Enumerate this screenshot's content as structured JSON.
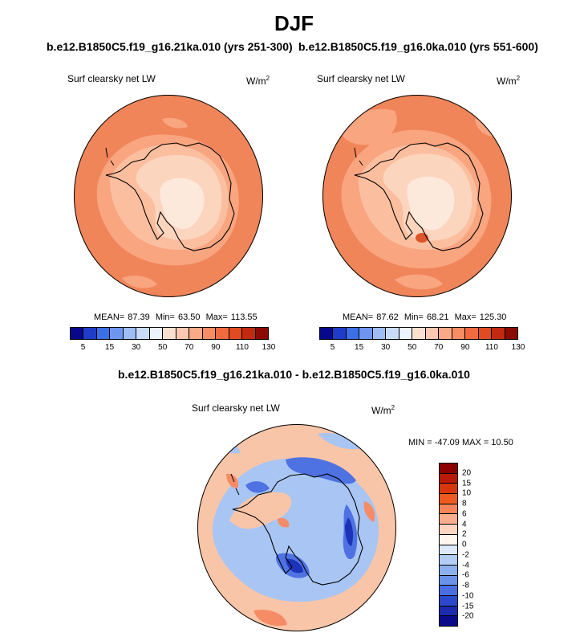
{
  "figure": {
    "title": "DJF",
    "left_case": "b.e12.B1850C5.f19_g16.21ka.010 (yrs 251-300)",
    "right_case": "b.e12.B1850C5.f19_g16.0ka.010 (yrs 551-600)",
    "diff_title": "b.e12.B1850C5.f19_g16.21ka.010 - b.e12.B1850C5.f19_g16.0ka.010"
  },
  "panels": {
    "left": {
      "variable": "Surf clearsky net LW",
      "units_base": "W/m",
      "units_exp": "2",
      "mean_label": "MEAN=",
      "mean": "87.39",
      "min_label": "Min=",
      "min": "63.50",
      "max_label": "Max=",
      "max": "113.55"
    },
    "right": {
      "variable": "Surf clearsky net LW",
      "units_base": "W/m",
      "units_exp": "2",
      "mean_label": "MEAN=",
      "mean": "87.62",
      "min_label": "Min=",
      "min": "68.21",
      "max_label": "Max=",
      "max": "125.30"
    },
    "diff": {
      "variable": "Surf clearsky net LW",
      "units_base": "W/m",
      "units_exp": "2",
      "minmax_text": "MIN = -47.09 MAX =  10.50"
    }
  },
  "colorbars": {
    "main": {
      "colors": [
        "#08088c",
        "#1e3cc8",
        "#3c6ee6",
        "#6e96f0",
        "#9ebef5",
        "#c8dcfa",
        "#ebf3ff",
        "#fbe0d0",
        "#fcc8b0",
        "#fbaa88",
        "#f88c62",
        "#f26a40",
        "#e24a22",
        "#c22a10",
        "#8c0a04"
      ],
      "tick_labels": [
        "5",
        "15",
        "30",
        "50",
        "70",
        "90",
        "110",
        "130"
      ]
    },
    "diff": {
      "colors": [
        "#8c0000",
        "#b81a06",
        "#d8360e",
        "#ee5a20",
        "#f7845a",
        "#fbae8e",
        "#fdd4bf",
        "#fff6ee",
        "#dde9fb",
        "#b4cdf6",
        "#8cb0ef",
        "#6a92e8",
        "#4a6ee0",
        "#2c48cc",
        "#1c2ab0",
        "#0a0a8a"
      ],
      "tick_labels": [
        "20",
        "15",
        "10",
        "8",
        "6",
        "4",
        "2",
        "0",
        "-2",
        "-4",
        "-6",
        "-8",
        "-10",
        "-15",
        "-20"
      ]
    }
  },
  "map_legend": {
    "colors": {
      "ocean": "#f0855a",
      "sea_ice_zone": "#f9a580",
      "coast_shelf": "#fbbfa0",
      "interior": "#fcd5bf",
      "plateau": "#fde8dc",
      "diff_base": "#f9c5a8",
      "diff_cool": "#a9c5f3",
      "diff_strong_cool": "#4f72e3",
      "diff_deep_cool": "#1d34b9",
      "diff_warm": "#f58c66"
    }
  }
}
